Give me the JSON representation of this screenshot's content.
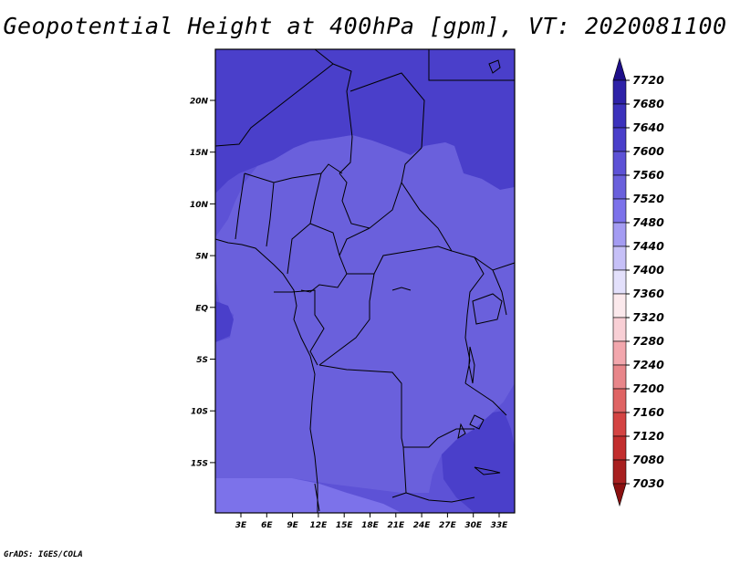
{
  "title": "Geopotential Height at 400hPa [gpm], VT: 2020081100",
  "credit": "GrADS: IGES/COLA",
  "map": {
    "lat_labels": [
      "20N",
      "15N",
      "10N",
      "5N",
      "EQ",
      "5S",
      "10S",
      "15S"
    ],
    "lon_labels": [
      "3E",
      "6E",
      "9E",
      "12E",
      "15E",
      "18E",
      "21E",
      "24E",
      "27E",
      "30E",
      "33E"
    ],
    "colors": {
      "c7640": "#4a3fca",
      "c7600": "#5d52d6",
      "c7560": "#6a60dc",
      "c7520": "#7c72ea"
    }
  },
  "colorbar": {
    "levels": [
      "7720",
      "7680",
      "7640",
      "7600",
      "7560",
      "7520",
      "7480",
      "7440",
      "7400",
      "7360",
      "7320",
      "7280",
      "7240",
      "7200",
      "7160",
      "7120",
      "7080",
      "7030"
    ],
    "colors": [
      "#1e0f8a",
      "#2e22a8",
      "#3c32bc",
      "#4a3fca",
      "#5d52d6",
      "#6a60dc",
      "#7c72ea",
      "#a49cf2",
      "#c6c0f7",
      "#e3e0fb",
      "#fbe9ec",
      "#f8cfd5",
      "#f2a7ad",
      "#e8868a",
      "#df6464",
      "#d44443",
      "#c22e2e",
      "#a82020",
      "#8a1010"
    ]
  }
}
